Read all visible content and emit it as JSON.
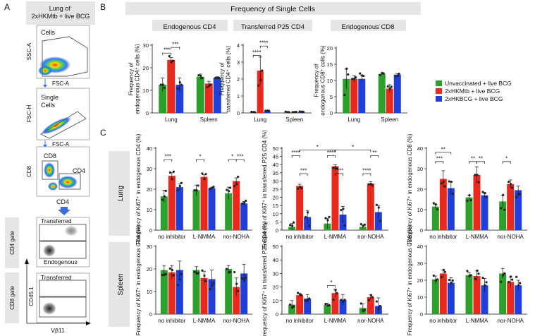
{
  "colors": {
    "green": "#2ca02c",
    "red": "#e8291c",
    "blue": "#1f3fd8",
    "banner": "#e6e6e6",
    "gate": "#555555"
  },
  "panel_labels": {
    "a": "A",
    "b": "B",
    "c": "C"
  },
  "flow": {
    "title": "Lung of\n2xHKMtb + live BCG",
    "p1": {
      "ylabel": "SSC-A",
      "xlabel": "FSC-A",
      "gate": "Cells"
    },
    "p2": {
      "ylabel": "FSC-H",
      "xlabel": "FSC-A",
      "gate": "Single\nCells"
    },
    "p3": {
      "ylabel": "CD8",
      "gate_cd8": "CD8",
      "gate_cd4": "CD4"
    },
    "arrow_label": "CD4",
    "p4": {
      "side": "CD4 gate",
      "top": "Transferred",
      "bottom": "Endogenous"
    },
    "p5": {
      "side": "CD8 gate",
      "top": "Transferred"
    },
    "shared": {
      "ylabel": "CD45.1",
      "xlabel": "Vβ11"
    }
  },
  "panel_b": {
    "banner": "Frequency of Single Cells"
  },
  "panel_c": {
    "row_lung": "Lung",
    "row_spleen": "Spleen"
  },
  "legend": [
    {
      "label": "Unvaccinated + live BCG",
      "color": "#2ca02c"
    },
    {
      "label": "2xHKMtb + live BCG",
      "color": "#e8291c"
    },
    {
      "label": "2xHKBCG + live BCG",
      "color": "#1f3fd8"
    }
  ],
  "chart_data": [
    {
      "id": "b1",
      "type": "bar",
      "title": "Endogenous CD4",
      "ylabel": "Frequency of\nendogenous CD4+ cells (%)",
      "ylim": [
        0,
        30
      ],
      "yticks": [
        0,
        10,
        20,
        30
      ],
      "categories": [
        "Lung",
        "Spleen"
      ],
      "series": [
        {
          "name": "Unvaccinated + live BCG",
          "values": [
            12.5,
            16
          ],
          "err": [
            3,
            1.2
          ]
        },
        {
          "name": "2xHKMtb + live BCG",
          "values": [
            23.5,
            13
          ],
          "err": [
            1,
            1
          ]
        },
        {
          "name": "2xHKBCG + live BCG",
          "values": [
            12.5,
            15.5
          ],
          "err": [
            3,
            0.5
          ]
        }
      ],
      "brackets": [
        {
          "a": [
            0,
            0
          ],
          "b": [
            0,
            1
          ],
          "text": "***",
          "v": 26.5
        },
        {
          "a": [
            0,
            1
          ],
          "b": [
            0,
            2
          ],
          "text": "***",
          "v": 29
        }
      ]
    },
    {
      "id": "b2",
      "type": "bar",
      "title": "Transferred P25 CD4",
      "ylabel": "Frequency of\ntransferred CD4+ cells (%)",
      "ylim": [
        0,
        4
      ],
      "yticks": [
        0,
        1,
        2,
        3,
        4
      ],
      "categories": [
        "Lung",
        "Spleen"
      ],
      "series": [
        {
          "name": "Unvaccinated + live BCG",
          "values": [
            0.04,
            0.04
          ],
          "err": [
            0.02,
            0.02
          ]
        },
        {
          "name": "2xHKMtb + live BCG",
          "values": [
            2.5,
            0.06
          ],
          "err": [
            0.8,
            0.02
          ]
        },
        {
          "name": "2xHKBCG + live BCG",
          "values": [
            0.1,
            0.06
          ],
          "err": [
            0.05,
            0.02
          ]
        }
      ],
      "brackets": [
        {
          "a": [
            0,
            0
          ],
          "b": [
            0,
            1
          ],
          "text": "****",
          "v": 3.4
        },
        {
          "a": [
            0,
            1
          ],
          "b": [
            0,
            2
          ],
          "text": "****",
          "v": 3.95
        }
      ]
    },
    {
      "id": "b3",
      "type": "bar",
      "title": "Endogenous CD8",
      "ylabel": "Frequency of\nendogenous CD8+ cells (%)",
      "ylim": [
        0,
        20
      ],
      "yticks": [
        0,
        5,
        10,
        15,
        20
      ],
      "categories": [
        "Lung",
        "Spleen"
      ],
      "series": [
        {
          "name": "Unvaccinated + live BCG",
          "values": [
            10.5,
            12
          ],
          "err": [
            3,
            0.3
          ]
        },
        {
          "name": "2xHKMtb + live BCG",
          "values": [
            10.5,
            7.5
          ],
          "err": [
            1,
            1.2
          ]
        },
        {
          "name": "2xHKBCG + live BCG",
          "values": [
            10.5,
            11.8
          ],
          "err": [
            1,
            0.3
          ]
        }
      ],
      "brackets": []
    },
    {
      "id": "c1",
      "type": "bar",
      "ylabel": "Frequency of Ki67+ in endogenous CD4 (%)",
      "ylim": [
        0,
        40
      ],
      "yticks": [
        0,
        10,
        20,
        30,
        40
      ],
      "categories": [
        "no inhibitor",
        "L-NMMA",
        "nor-NOHA"
      ],
      "series": [
        {
          "name": "Unvaccinated + live BCG",
          "values": [
            16.5,
            19.5,
            18
          ],
          "err": [
            3,
            2.5,
            3
          ]
        },
        {
          "name": "2xHKMtb + live BCG",
          "values": [
            26.5,
            26,
            24
          ],
          "err": [
            1.5,
            1,
            1.5
          ]
        },
        {
          "name": "2xHKBCG + live BCG",
          "values": [
            21,
            20.5,
            13
          ],
          "err": [
            1.5,
            0.5,
            1
          ]
        }
      ],
      "brackets": [
        {
          "a": [
            0,
            0
          ],
          "b": [
            0,
            1
          ],
          "text": "***",
          "v": 34.5
        },
        {
          "a": [
            1,
            0
          ],
          "b": [
            1,
            1
          ],
          "text": "*",
          "v": 34.5
        },
        {
          "a": [
            2,
            0
          ],
          "b": [
            2,
            1
          ],
          "text": "*",
          "v": 34.5
        },
        {
          "a": [
            2,
            1
          ],
          "b": [
            2,
            2
          ],
          "text": "***",
          "v": 34.5
        }
      ]
    },
    {
      "id": "c2",
      "type": "bar",
      "ylabel": "Frequency of Ki67+ in transferred P25 CD4 (%)",
      "ylim": [
        0,
        50
      ],
      "yticks": [
        0,
        5,
        10,
        15,
        20,
        25,
        30,
        35,
        40,
        45,
        50
      ],
      "categories": [
        "no inhibitor",
        "L-NMMA",
        "nor-NOHA"
      ],
      "series": [
        {
          "name": "Unvaccinated + live BCG",
          "values": [
            2,
            4,
            2
          ],
          "err": [
            2,
            3,
            1
          ]
        },
        {
          "name": "2xHKMtb + live BCG",
          "values": [
            27,
            39,
            28.5
          ],
          "err": [
            1,
            1,
            1
          ]
        },
        {
          "name": "2xHKBCG + live BCG",
          "values": [
            8,
            9.5,
            11
          ],
          "err": [
            4,
            5,
            4
          ]
        }
      ],
      "brackets": [
        {
          "a": [
            0,
            0
          ],
          "b": [
            0,
            1
          ],
          "text": "****",
          "v": 45.5
        },
        {
          "a": [
            0,
            1
          ],
          "b": [
            0,
            2
          ],
          "text": "***",
          "v": 34.5
        },
        {
          "a": [
            1,
            0
          ],
          "b": [
            1,
            1
          ],
          "text": "****",
          "v": 45.5
        },
        {
          "a": [
            1,
            1
          ],
          "b": [
            1,
            2
          ],
          "text": "****",
          "v": 34.5
        },
        {
          "a": [
            2,
            0
          ],
          "b": [
            2,
            1
          ],
          "text": "****",
          "v": 34.5
        },
        {
          "a": [
            2,
            1
          ],
          "b": [
            2,
            2
          ],
          "text": "**",
          "v": 45.5
        },
        {
          "a": [
            0,
            1
          ],
          "b": [
            1,
            1
          ],
          "text": "*",
          "v": 49
        },
        {
          "a": [
            1,
            1
          ],
          "b": [
            2,
            1
          ],
          "text": "*",
          "v": 49
        }
      ]
    },
    {
      "id": "c3",
      "type": "bar",
      "ylabel": "Frequency of Ki67+ in endogenous CD8 (%)",
      "ylim": [
        0,
        40
      ],
      "yticks": [
        0,
        10,
        20,
        30,
        40
      ],
      "categories": [
        "no inhibitor",
        "L-NMMA",
        "nor-NOHA"
      ],
      "series": [
        {
          "name": "Unvaccinated + live BCG",
          "values": [
            11.5,
            16,
            14
          ],
          "err": [
            1,
            1,
            3
          ]
        },
        {
          "name": "2xHKMtb + live BCG",
          "values": [
            25,
            27,
            22.5
          ],
          "err": [
            4,
            4,
            2
          ]
        },
        {
          "name": "2xHKBCG + live BCG",
          "values": [
            20.5,
            17,
            19.5
          ],
          "err": [
            3,
            1,
            2
          ]
        }
      ],
      "brackets": [
        {
          "a": [
            0,
            0
          ],
          "b": [
            0,
            1
          ],
          "text": "***",
          "v": 33.5
        },
        {
          "a": [
            0,
            0
          ],
          "b": [
            0,
            2
          ],
          "text": "**",
          "v": 38
        },
        {
          "a": [
            1,
            0
          ],
          "b": [
            1,
            1
          ],
          "text": "**",
          "v": 33.5
        },
        {
          "a": [
            1,
            1
          ],
          "b": [
            1,
            2
          ],
          "text": "**",
          "v": 33.5
        },
        {
          "a": [
            2,
            0
          ],
          "b": [
            2,
            1
          ],
          "text": "*",
          "v": 33.5
        }
      ]
    },
    {
      "id": "c4",
      "type": "bar",
      "ylabel": "Frequency of Ki67+ in endogenous CD4 (%)",
      "ylim": [
        0,
        30
      ],
      "yticks": [
        0,
        10,
        20,
        30
      ],
      "categories": [
        "no inhibitor",
        "L-NMMA",
        "nor-NOHA"
      ],
      "series": [
        {
          "name": "Unvaccinated + live BCG",
          "values": [
            19.5,
            19.5,
            20
          ],
          "err": [
            2,
            1.5,
            1.5
          ]
        },
        {
          "name": "2xHKMtb + live BCG",
          "values": [
            18.5,
            16,
            12
          ],
          "err": [
            3,
            3,
            4
          ]
        },
        {
          "name": "2xHKBCG + live BCG",
          "values": [
            19.5,
            15.5,
            18
          ],
          "err": [
            4,
            4,
            4
          ]
        }
      ],
      "brackets": []
    },
    {
      "id": "c5",
      "type": "bar",
      "ylabel": "Frequency of Ki67+ in transferred P25 CD4 (%)",
      "ylim": [
        0,
        50
      ],
      "yticks": [
        0,
        10,
        20,
        30,
        40,
        50
      ],
      "categories": [
        "no inhibitor",
        "L-NMMA",
        "nor-NOHA"
      ],
      "series": [
        {
          "name": "Unvaccinated + live BCG",
          "values": [
            7,
            7,
            4.5
          ],
          "err": [
            3,
            1,
            3
          ]
        },
        {
          "name": "2xHKMtb + live BCG",
          "values": [
            14,
            15.5,
            12.5
          ],
          "err": [
            1,
            3,
            2
          ]
        },
        {
          "name": "2xHKBCG + live BCG",
          "values": [
            11.5,
            10.5,
            6
          ],
          "err": [
            3,
            4,
            6
          ]
        }
      ],
      "brackets": [
        {
          "a": [
            1,
            0
          ],
          "b": [
            1,
            1
          ],
          "text": "*",
          "v": 21
        }
      ]
    },
    {
      "id": "c6",
      "type": "bar",
      "ylabel": "Frequency of Ki67+ in endogenous CD8 (%)",
      "ylim": [
        0,
        40
      ],
      "yticks": [
        0,
        10,
        20,
        30,
        40
      ],
      "categories": [
        "no inhibitor",
        "L-NMMA",
        "nor-NOHA"
      ],
      "series": [
        {
          "name": "Unvaccinated + live BCG",
          "values": [
            20.5,
            23,
            24
          ],
          "err": [
            2,
            1.5,
            3
          ]
        },
        {
          "name": "2xHKMtb + live BCG",
          "values": [
            24,
            22.5,
            19
          ],
          "err": [
            2,
            3,
            3
          ]
        },
        {
          "name": "2xHKBCG + live BCG",
          "values": [
            18.5,
            17,
            17
          ],
          "err": [
            3,
            4,
            3
          ]
        }
      ],
      "brackets": []
    }
  ]
}
